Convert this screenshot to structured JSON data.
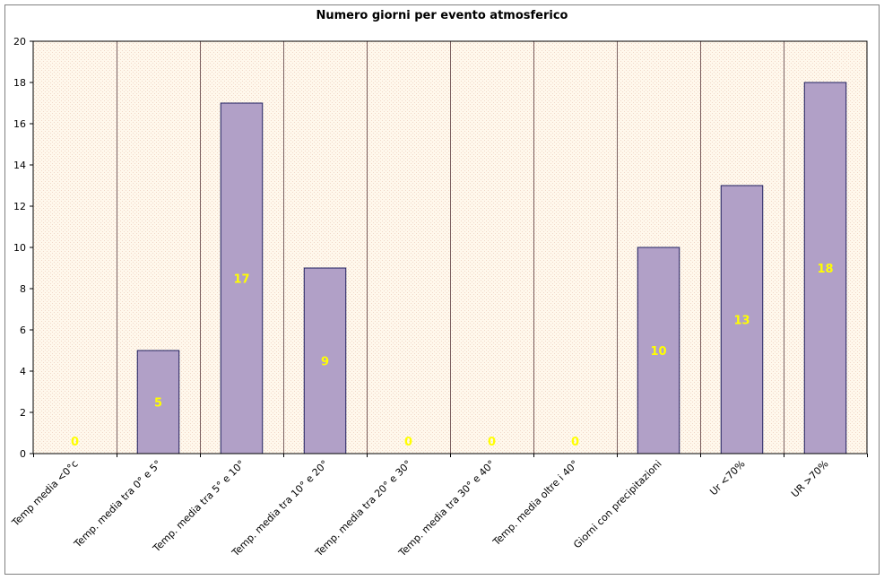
{
  "chart_data": {
    "type": "bar",
    "title": "Numero giorni per evento atmosferico",
    "categories": [
      "Temp media <0°c",
      "Temp. media tra 0° e 5°",
      "Temp. media tra 5° e 10°",
      "Temp. media tra 10° e 20°",
      "Temp. media tra 20° e 30°",
      "Temp. media tra 30° e 40°",
      "Temp. media oltre i 40°",
      "Giorni con precipitazioni",
      "Ur <70%",
      "UR >70%"
    ],
    "values": [
      0,
      5,
      17,
      9,
      0,
      0,
      0,
      10,
      13,
      18
    ],
    "ylim": [
      0,
      20
    ],
    "yticks": [
      0,
      2,
      4,
      6,
      8,
      10,
      12,
      14,
      16,
      18,
      20
    ],
    "xlabel": "",
    "ylabel": "",
    "grid": "vertical category separators",
    "legend": "none",
    "colors": {
      "bar_fill": "#b1a0c7",
      "bar_stroke": "#1f1f5f",
      "plot_background": "#fff8ec",
      "plot_dots": "#f0d7c8",
      "separator": "#7a5f5f",
      "data_label": "#ffff00"
    }
  }
}
